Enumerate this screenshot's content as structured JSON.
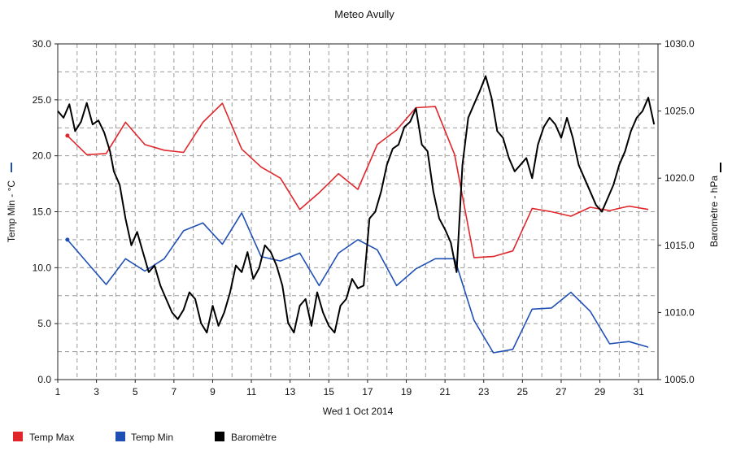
{
  "chart_data": {
    "type": "line",
    "title": "Meteo  Avully",
    "xlabel": "Wed 1 Oct 2014",
    "ylabel_left": "Temp Min - °C",
    "ylabel_right": "Baromètre - hPa",
    "xlim": [
      1,
      32
    ],
    "ylim_left": [
      0,
      30
    ],
    "ylim_right": [
      1005,
      1030
    ],
    "grid": true,
    "legend_position": "bottom-left",
    "x_tick_labels": [
      "1",
      "3",
      "5",
      "7",
      "9",
      "11",
      "13",
      "15",
      "17",
      "19",
      "21",
      "23",
      "25",
      "27",
      "29",
      "31"
    ],
    "y_left_tick_labels": [
      "0.0",
      "5.0",
      "10.0",
      "15.0",
      "20.0",
      "25.0",
      "30.0"
    ],
    "y_right_tick_labels": [
      "1005.0",
      "1010.0",
      "1015.0",
      "1020.0",
      "1025.0",
      "1030.0"
    ],
    "series": [
      {
        "name": "Temp Max",
        "axis": "left",
        "color": "#e0262b",
        "x": [
          1.5,
          2.5,
          3.5,
          4.5,
          5.5,
          6.5,
          7.5,
          8.5,
          9.5,
          10.5,
          11.5,
          12.5,
          13.5,
          14.5,
          15.5,
          16.5,
          17.5,
          18.5,
          19.5,
          20.5,
          21.5,
          22.5,
          23.5,
          24.5,
          25.5,
          26.5,
          27.5,
          28.5,
          29.5,
          30.5,
          31.5
        ],
        "values": [
          21.8,
          20.1,
          20.2,
          23.0,
          21.0,
          20.5,
          20.3,
          23.0,
          24.7,
          20.6,
          19.0,
          18.0,
          15.2,
          16.7,
          18.4,
          17.0,
          21.0,
          22.3,
          24.3,
          24.4,
          20.1,
          10.9,
          11.0,
          11.5,
          15.3,
          15.0,
          14.6,
          15.4,
          15.1,
          15.5,
          15.2
        ]
      },
      {
        "name": "Temp Min",
        "axis": "left",
        "color": "#1f4fb5",
        "x": [
          1.5,
          2.5,
          3.5,
          4.5,
          5.5,
          6.5,
          7.5,
          8.5,
          9.5,
          10.5,
          11.5,
          12.5,
          13.5,
          14.5,
          15.5,
          16.5,
          17.5,
          18.5,
          19.5,
          20.5,
          21.5,
          22.5,
          23.5,
          24.5,
          25.5,
          26.5,
          27.5,
          28.5,
          29.5,
          30.5,
          31.5
        ],
        "values": [
          12.5,
          10.5,
          8.5,
          10.8,
          9.7,
          10.8,
          13.3,
          14.0,
          12.1,
          14.9,
          11.0,
          10.6,
          11.3,
          8.4,
          11.3,
          12.5,
          11.6,
          8.4,
          9.9,
          10.8,
          10.8,
          5.3,
          2.4,
          2.7,
          6.3,
          6.4,
          7.8,
          6.1,
          3.2,
          3.4,
          2.9
        ]
      },
      {
        "name": "Baromètre",
        "axis": "right",
        "color": "#000000",
        "x": [
          1.0,
          1.3,
          1.6,
          1.9,
          2.2,
          2.5,
          2.8,
          3.1,
          3.4,
          3.7,
          3.9,
          4.2,
          4.5,
          4.8,
          5.1,
          5.4,
          5.7,
          6.0,
          6.3,
          6.6,
          6.9,
          7.2,
          7.5,
          7.8,
          8.1,
          8.4,
          8.7,
          9.0,
          9.3,
          9.6,
          9.9,
          10.2,
          10.5,
          10.8,
          11.1,
          11.4,
          11.7,
          12.0,
          12.3,
          12.6,
          12.9,
          13.2,
          13.5,
          13.8,
          14.1,
          14.4,
          14.7,
          15.0,
          15.3,
          15.6,
          15.9,
          16.2,
          16.5,
          16.8,
          17.1,
          17.4,
          17.7,
          18.0,
          18.3,
          18.6,
          18.9,
          19.2,
          19.5,
          19.8,
          20.1,
          20.4,
          20.7,
          21.0,
          21.3,
          21.6,
          21.9,
          22.2,
          22.5,
          22.8,
          23.1,
          23.4,
          23.7,
          24.0,
          24.3,
          24.6,
          24.9,
          25.2,
          25.5,
          25.8,
          26.1,
          26.4,
          26.7,
          27.0,
          27.3,
          27.6,
          27.9,
          28.2,
          28.5,
          28.8,
          29.1,
          29.4,
          29.7,
          30.0,
          30.3,
          30.6,
          30.9,
          31.2,
          31.5,
          31.8
        ],
        "values": [
          1025,
          1024.5,
          1025.5,
          1023.5,
          1024.2,
          1025.6,
          1024,
          1024.3,
          1023.4,
          1022,
          1020.5,
          1019.5,
          1017,
          1015,
          1016,
          1014.5,
          1013,
          1013.5,
          1012,
          1011,
          1010,
          1009.5,
          1010.2,
          1011.5,
          1011,
          1009.2,
          1008.5,
          1010.5,
          1009,
          1010,
          1011.5,
          1013.5,
          1013,
          1014.5,
          1012.5,
          1013.3,
          1015,
          1014.5,
          1013.5,
          1012,
          1009.2,
          1008.5,
          1010.5,
          1011,
          1009,
          1011.5,
          1010,
          1009,
          1008.5,
          1010.5,
          1011,
          1012.5,
          1011.8,
          1012,
          1017,
          1017.5,
          1019,
          1021,
          1022.2,
          1022.5,
          1023.8,
          1024.2,
          1025.2,
          1022.5,
          1022,
          1019,
          1017,
          1016.2,
          1015.2,
          1013,
          1021,
          1024.5,
          1025.5,
          1026.5,
          1027.6,
          1026,
          1023.5,
          1023,
          1021.5,
          1020.5,
          1021,
          1021.5,
          1020,
          1022.5,
          1023.8,
          1024.5,
          1024,
          1023,
          1024.5,
          1023,
          1021,
          1020,
          1019,
          1018,
          1017.5,
          1018.5,
          1019.5,
          1021,
          1022,
          1023.5,
          1024.5,
          1025,
          1026,
          1024
        ]
      }
    ]
  },
  "legend": [
    {
      "label": "Temp Max",
      "color": "#e0262b"
    },
    {
      "label": "Temp Min",
      "color": "#1f4fb5"
    },
    {
      "label": "Baromètre",
      "color": "#000000"
    }
  ]
}
